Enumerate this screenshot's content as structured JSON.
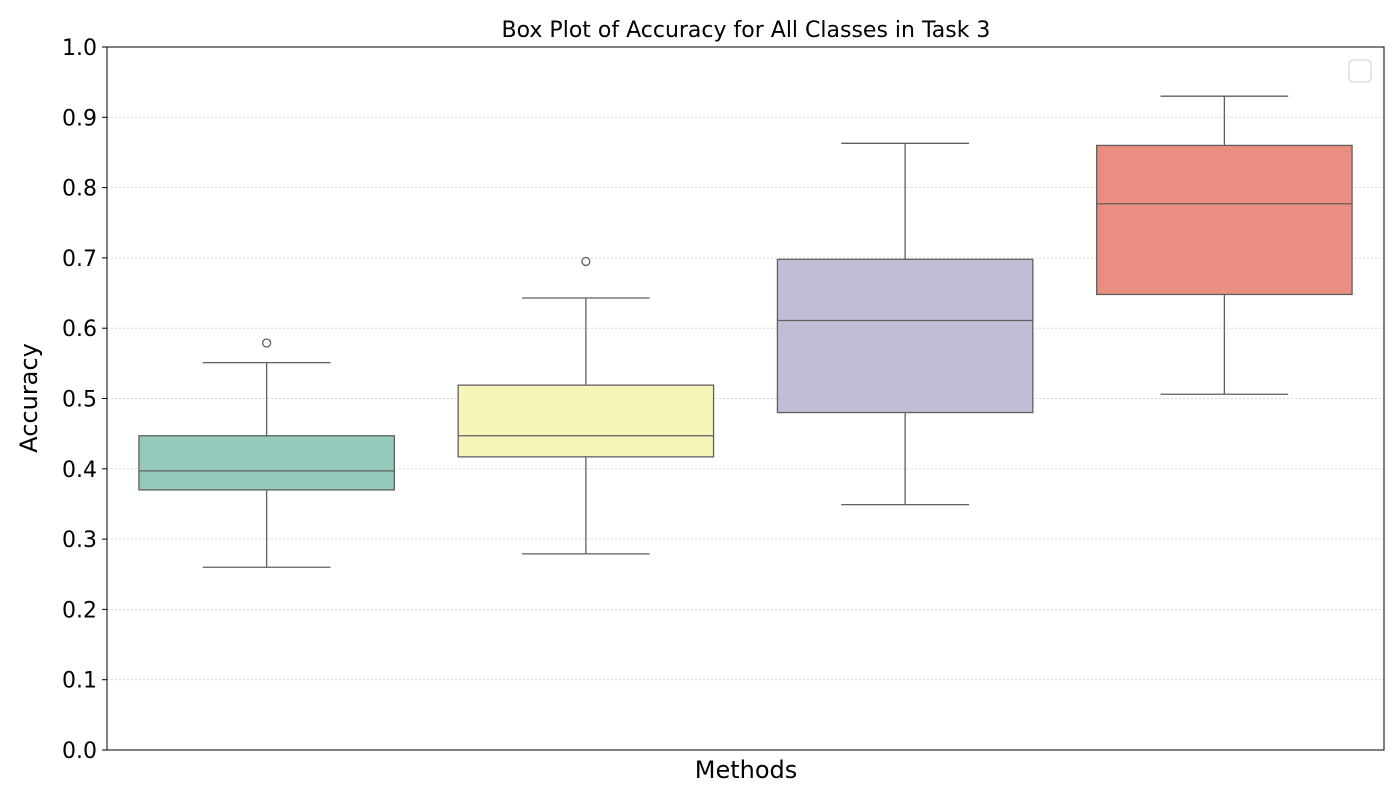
{
  "chart_data": {
    "type": "box",
    "title": "Box Plot of Accuracy for All Classes in Task 3",
    "xlabel": "Methods",
    "ylabel": "Accuracy",
    "ylim": [
      0.0,
      1.0
    ],
    "yticks": [
      "0.0",
      "0.1",
      "0.2",
      "0.3",
      "0.4",
      "0.5",
      "0.6",
      "0.7",
      "0.8",
      "0.9",
      "1.0"
    ],
    "grid": "horizontal dotted",
    "legend": "top-right (empty)",
    "boxes": [
      {
        "color": "#96c9be",
        "whisker_low": 0.26,
        "q1": 0.37,
        "median": 0.397,
        "q3": 0.447,
        "whisker_high": 0.551,
        "outliers": [
          0.579
        ]
      },
      {
        "color": "#f6f6bb",
        "whisker_low": 0.279,
        "q1": 0.417,
        "median": 0.447,
        "q3": 0.519,
        "whisker_high": 0.643,
        "outliers": [
          0.695
        ]
      },
      {
        "color": "#c1bdd6",
        "whisker_low": 0.349,
        "q1": 0.48,
        "median": 0.611,
        "q3": 0.698,
        "whisker_high": 0.863,
        "outliers": []
      },
      {
        "color": "#ea8e81",
        "whisker_low": 0.506,
        "q1": 0.648,
        "median": 0.777,
        "q3": 0.86,
        "whisker_high": 0.93,
        "outliers": []
      }
    ]
  }
}
